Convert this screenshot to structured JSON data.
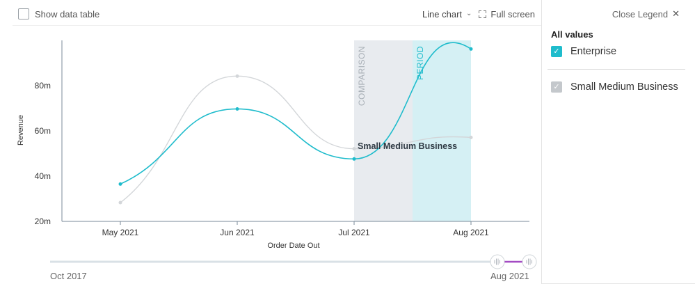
{
  "toolbar": {
    "show_data_table_label": "Show data table",
    "chart_type_label": "Line chart",
    "full_screen_label": "Full screen"
  },
  "legend": {
    "close_label": "Close Legend",
    "heading": "All values",
    "items": [
      {
        "label": "Enterprise",
        "checked": true,
        "color": "#1fbccc"
      },
      {
        "label": "Small Medium Business",
        "checked": true,
        "color": "#c4c8cc"
      }
    ]
  },
  "range": {
    "start_label": "Oct 2017",
    "end_label": "Aug 2021",
    "handle_color": "#a34bc3"
  },
  "chart_data": {
    "type": "line",
    "title": "",
    "xlabel": "Order Date Out",
    "ylabel": "Revenue",
    "categories": [
      "May 2021",
      "Jun 2021",
      "Jul 2021",
      "Aug 2021"
    ],
    "y_ticks": [
      20,
      40,
      60,
      80
    ],
    "y_tick_labels": [
      "20m",
      "40m",
      "60m",
      "80m"
    ],
    "ylim": [
      20,
      100
    ],
    "series": [
      {
        "name": "Enterprise",
        "color": "#1fbccc",
        "values": [
          36.5,
          69.7,
          47.6,
          96.2
        ]
      },
      {
        "name": "Small Medium Business",
        "color": "#d3d6d9",
        "values": [
          28.3,
          84.2,
          52.1,
          57.1
        ]
      }
    ],
    "bands": [
      {
        "label": "COMPARISON",
        "from_index": 2,
        "to_index": 2.5,
        "fill": "#e8ebef",
        "text_color": "#a8afb6"
      },
      {
        "label": "PERIOD",
        "from_index": 2.5,
        "to_index": 3,
        "fill": "#d5f0f4",
        "text_color": "#1fbccc"
      }
    ],
    "annotation": {
      "text": "Small Medium Business",
      "x_index": 2.03,
      "value": 53.2
    },
    "grid": false
  }
}
